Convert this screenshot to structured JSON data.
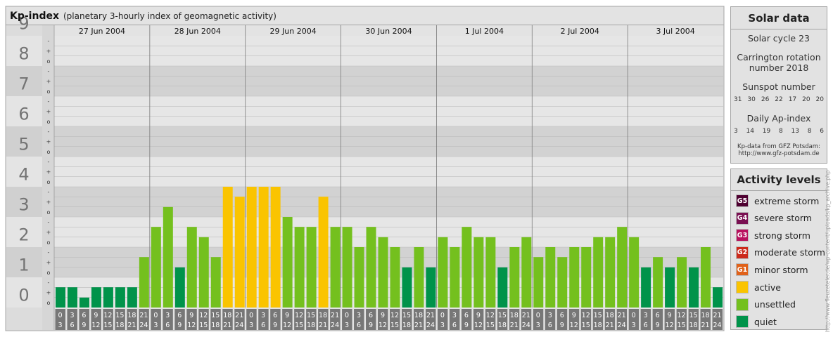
{
  "header": {
    "title": "Kp-index",
    "subtitle": "(planetary 3-hourly index of geomagnetic activity)"
  },
  "chart_data": {
    "type": "bar",
    "ylim": [
      0,
      9
    ],
    "y_ticks": [
      "0",
      "1",
      "2",
      "3",
      "4",
      "5",
      "6",
      "7",
      "8",
      "9"
    ],
    "sub_ticks": [
      "o",
      "+",
      "-"
    ],
    "days": [
      "27 Jun 2004",
      "28 Jun 2004",
      "29 Jun 2004",
      "30 Jun 2004",
      "1 Jul 2004",
      "2 Jul 2004",
      "3 Jul 2004"
    ],
    "interval_top": [
      "0",
      "3",
      "6",
      "9",
      "12",
      "15",
      "18",
      "21"
    ],
    "interval_bottom": [
      "3",
      "6",
      "9",
      "12",
      "15",
      "18",
      "21",
      "24"
    ],
    "values": [
      0.67,
      0.67,
      0.33,
      0.67,
      0.67,
      0.67,
      0.67,
      1.67,
      2.67,
      3.33,
      1.33,
      2.67,
      2.33,
      1.67,
      4.0,
      3.67,
      4.0,
      4.0,
      4.0,
      3.0,
      2.67,
      2.67,
      3.67,
      2.67,
      2.67,
      2.0,
      2.67,
      2.33,
      2.0,
      1.33,
      2.0,
      1.33,
      2.33,
      2.0,
      2.67,
      2.33,
      2.33,
      1.33,
      2.0,
      2.33,
      1.67,
      2.0,
      1.67,
      2.0,
      2.0,
      2.33,
      2.33,
      2.67,
      2.33,
      1.33,
      1.67,
      1.33,
      1.67,
      1.33,
      2.0,
      0.67
    ],
    "colors": {
      "quiet": "#00934a",
      "unsettled": "#74c01e",
      "active": "#fac400",
      "minor": "#e0621a",
      "moderate": "#cc2a1c",
      "strong": "#b8115e",
      "severe": "#7a1052",
      "extreme": "#4e0030"
    }
  },
  "solar": {
    "title": "Solar data",
    "cycle": "Solar cycle 23",
    "carrington_l1": "Carrington rotation",
    "carrington_l2": "number 2018",
    "sunspot_label": "Sunspot number",
    "sunspot_values": [
      "31",
      "30",
      "26",
      "22",
      "17",
      "20",
      "20"
    ],
    "ap_label": "Daily Ap-index",
    "ap_values": [
      "3",
      "14",
      "19",
      "8",
      "13",
      "8",
      "6"
    ],
    "source_l1": "Kp-data from GFZ Potsdam:",
    "source_l2": "http://www.gfz-potsdam.de"
  },
  "activity": {
    "title": "Activity levels",
    "levels": [
      {
        "code": "G5",
        "label": "extreme storm",
        "color": "#4e0030"
      },
      {
        "code": "G4",
        "label": "severe storm",
        "color": "#7a1052"
      },
      {
        "code": "G3",
        "label": "strong storm",
        "color": "#b8115e"
      },
      {
        "code": "G2",
        "label": "moderate storm",
        "color": "#cc2a1c"
      },
      {
        "code": "G1",
        "label": "minor storm",
        "color": "#e0621a"
      },
      {
        "code": "",
        "label": "active",
        "color": "#fac400"
      },
      {
        "code": "",
        "label": "unsettled",
        "color": "#74c01e"
      },
      {
        "code": "",
        "label": "quiet",
        "color": "#00934a"
      }
    ]
  },
  "credit": "http://www.fleuzeteler.de/wp-content/uploads/kp_archive.php"
}
